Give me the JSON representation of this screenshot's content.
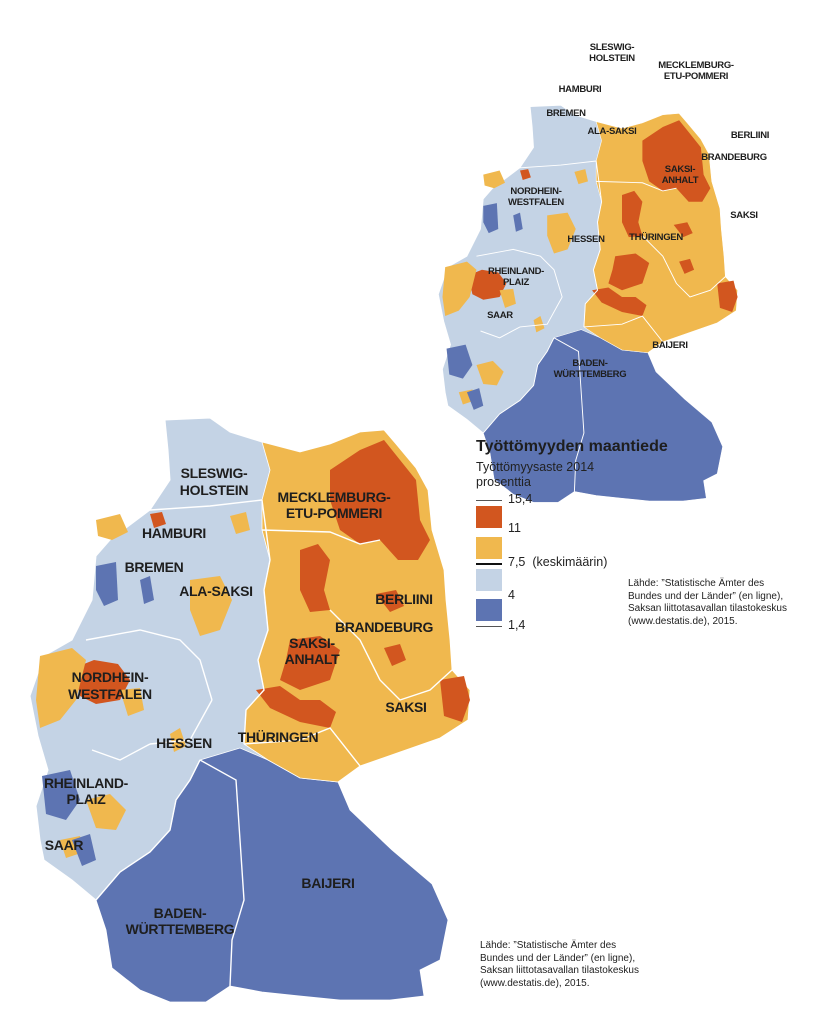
{
  "legend": {
    "title": "Työttömyyden maantiede",
    "subtitle": "Työttömyysaste 2014",
    "unit": "prosenttia",
    "thresholds": [
      "15,4",
      "11",
      "7,5",
      "4",
      "1,4"
    ],
    "mean_note": "(keskimäärin)",
    "colors": [
      "#d2561f",
      "#f0b84e",
      "#c4d3e5",
      "#5d74b2"
    ]
  },
  "source_right": [
    "Lähde: ”Statistische Ämter des",
    "Bundes und der Länder” (en ligne),",
    "Saksan liittotasavallan tilastokeskus",
    "(www.destatis.de), 2015."
  ],
  "source_bottom": [
    "Lähde: ”Statistische Ämter des",
    "Bundes und der Länder” (en ligne),",
    "Saksan liittotasavallan tilastokeskus",
    "(www.destatis.de), 2015."
  ],
  "states": {
    "sh": [
      "SLESWIG-",
      "HOLSTEIN"
    ],
    "hh": [
      "HAMBURI"
    ],
    "hb": [
      "BREMEN"
    ],
    "ni": [
      "ALA-SAKSI"
    ],
    "mv": [
      "MECKLEMBURG-",
      "ETU-POMMERI"
    ],
    "be": [
      "BERLIINI"
    ],
    "bb": [
      "BRANDEBURG"
    ],
    "st": [
      "SAKSI-",
      "ANHALT"
    ],
    "nw": [
      "NORDHEIN-",
      "WESTFALEN"
    ],
    "he": [
      "HESSEN"
    ],
    "th": [
      "THÜRINGEN"
    ],
    "sn": [
      "SAKSI"
    ],
    "rp": [
      "RHEINLAND-",
      "PLAIZ"
    ],
    "sl": [
      "SAAR"
    ],
    "bw": [
      "BADEN-",
      "WÜRTTEMBERG"
    ],
    "by": [
      "BAIJERI"
    ]
  }
}
